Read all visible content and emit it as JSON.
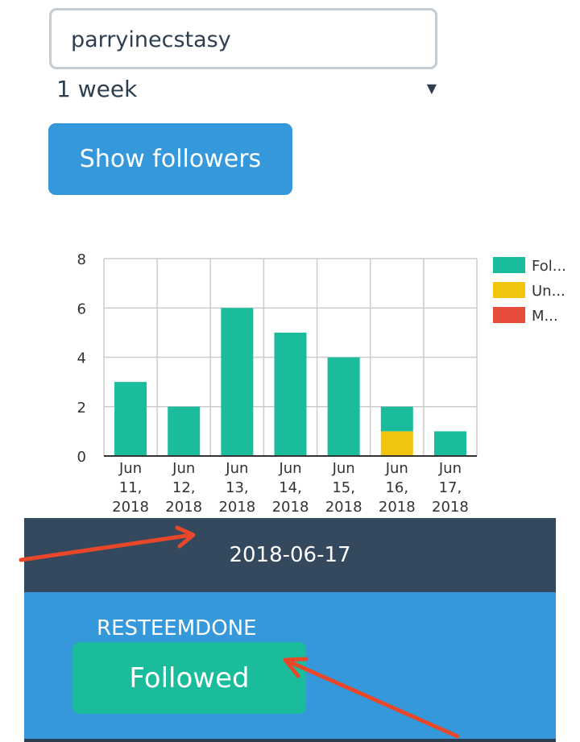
{
  "form": {
    "username_value": "parryinecstasy",
    "period_selected": "1 week",
    "show_button_label": "Show followers"
  },
  "chart_data": {
    "type": "bar",
    "stacked": true,
    "categories": [
      [
        "Jun",
        "11,",
        "2018"
      ],
      [
        "Jun",
        "12,",
        "2018"
      ],
      [
        "Jun",
        "13,",
        "2018"
      ],
      [
        "Jun",
        "14,",
        "2018"
      ],
      [
        "Jun",
        "15,",
        "2018"
      ],
      [
        "Jun",
        "16,",
        "2018"
      ],
      [
        "Jun",
        "17,",
        "2018"
      ]
    ],
    "series": [
      {
        "name": "Fol...",
        "color": "#1abc9c",
        "values": [
          3,
          2,
          6,
          5,
          4,
          1,
          1
        ]
      },
      {
        "name": "Un...",
        "color": "#f1c40f",
        "values": [
          0,
          0,
          0,
          0,
          0,
          1,
          0
        ]
      },
      {
        "name": "M...",
        "color": "#e74c3c",
        "values": [
          0,
          0,
          0,
          0,
          0,
          0,
          0
        ]
      }
    ],
    "ylim": [
      0,
      8
    ],
    "yticks": [
      0,
      2,
      4,
      6,
      8
    ],
    "grid": true,
    "legend_position": "right"
  },
  "events": {
    "date": "2018-06-17",
    "user": "RESTEEMDONE",
    "action_label": "Followed"
  },
  "colors": {
    "primary": "#3498db",
    "teal": "#1abc9c",
    "dark": "#34495e",
    "annotation_arrow": "#e8472a"
  }
}
